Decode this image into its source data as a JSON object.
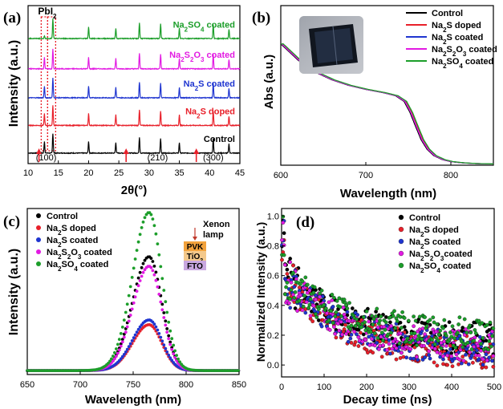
{
  "chart_data": [
    {
      "panel": "(a)",
      "type": "line",
      "title": "",
      "xlabel": "2θ(°)",
      "ylabel": "Intensity (a.u.)",
      "xlim": [
        10,
        45
      ],
      "xticks": [
        10,
        15,
        20,
        25,
        30,
        35,
        40,
        45
      ],
      "ylim": [
        0,
        6
      ],
      "annotations": {
        "pbi2": "PbI",
        "pbi2_sub": "2",
        "p100": "(100)",
        "p210": "(210)",
        "p300": "(300)"
      },
      "peaks": [
        12.7,
        14.1,
        20.0,
        24.5,
        28.4,
        31.9,
        35.0,
        40.6,
        43.2
      ],
      "peak_heights": [
        0.45,
        0.75,
        0.45,
        0.4,
        0.6,
        0.55,
        0.4,
        0.55,
        0.35
      ],
      "pbi2_peak": 12.7,
      "arrows_x": [
        11.8,
        26.2,
        37.8
      ],
      "series": [
        {
          "name": "Control",
          "label_parts": [
            "Control"
          ],
          "offset": 0.4,
          "color": "#000000"
        },
        {
          "name": "Na2S doped",
          "label_parts": [
            "Na",
            "2",
            "S doped"
          ],
          "offset": 1.45,
          "color": "#e8202a"
        },
        {
          "name": "Na2S coated",
          "label_parts": [
            "Na",
            "2",
            "S coated"
          ],
          "offset": 2.5,
          "color": "#1f35d0"
        },
        {
          "name": "Na2S2O3 coated",
          "label_parts": [
            "Na",
            "2",
            "S",
            "2",
            "O",
            "3",
            " coated"
          ],
          "offset": 3.6,
          "color": "#e21ae2"
        },
        {
          "name": "Na2SO4 coated",
          "label_parts": [
            "Na",
            "2",
            "SO",
            "4",
            " coated"
          ],
          "offset": 4.75,
          "color": "#1c9e2a"
        }
      ]
    },
    {
      "panel": "(b)",
      "type": "line",
      "xlabel": "Wavelength (nm)",
      "ylabel": "Abs (a.u.)",
      "xlim": [
        600,
        850
      ],
      "xticks": [
        600,
        700,
        800
      ],
      "ylim": [
        0,
        1
      ],
      "curve_x": [
        600,
        620,
        640,
        660,
        680,
        700,
        720,
        735,
        745,
        752,
        758,
        765,
        772,
        780,
        790,
        800,
        815,
        830,
        850
      ],
      "curve_y": [
        0.76,
        0.66,
        0.585,
        0.535,
        0.5,
        0.475,
        0.455,
        0.435,
        0.4,
        0.33,
        0.25,
        0.16,
        0.1,
        0.06,
        0.035,
        0.022,
        0.014,
        0.01,
        0.008
      ],
      "shifts": [
        0,
        2,
        1,
        1,
        3
      ],
      "series": [
        {
          "name": "Control",
          "label_parts": [
            "Control"
          ],
          "color": "#000000"
        },
        {
          "name": "Na2S doped",
          "label_parts": [
            "Na",
            "2",
            "S doped"
          ],
          "color": "#e8202a"
        },
        {
          "name": "Na2S coated",
          "label_parts": [
            "Na",
            "2",
            "S coated"
          ],
          "color": "#1f35d0"
        },
        {
          "name": "Na2S2O3 coated",
          "label_parts": [
            "Na",
            "2",
            "S",
            "2",
            "O",
            "3",
            " coated"
          ],
          "color": "#e21ae2"
        },
        {
          "name": "Na2SO4 coated",
          "label_parts": [
            "Na",
            "2",
            "SO",
            "4",
            " coated"
          ],
          "color": "#1c9e2a"
        }
      ],
      "legend": "top-right"
    },
    {
      "panel": "(c)",
      "type": "scatter",
      "xlabel": "Wavelength (nm)",
      "ylabel": "Intensity (a.u.)",
      "xlim": [
        650,
        850
      ],
      "xticks": [
        650,
        700,
        750,
        800,
        850
      ],
      "ylim": [
        0,
        1.05
      ],
      "center": 765,
      "inset": {
        "title1": "Xenon",
        "title2": "lamp",
        "layers": [
          "PVK",
          "TiO",
          "FTO"
        ],
        "tio_sub": "2"
      },
      "series": [
        {
          "name": "Control",
          "label_parts": [
            "Control"
          ],
          "peak": 0.72,
          "color": "#000000"
        },
        {
          "name": "Na2S doped",
          "label_parts": [
            "Na",
            "2",
            "S doped"
          ],
          "peak": 0.29,
          "color": "#e8202a"
        },
        {
          "name": "Na2S coated",
          "label_parts": [
            "Na",
            "2",
            "S coated"
          ],
          "peak": 0.32,
          "color": "#1f35d0"
        },
        {
          "name": "Na2S2O3 coated",
          "label_parts": [
            "Na",
            "2",
            "S",
            "2",
            "O",
            "3",
            " coated"
          ],
          "peak": 0.66,
          "color": "#e21ae2"
        },
        {
          "name": "Na2SO4 coated",
          "label_parts": [
            "Na",
            "2",
            "SO",
            "4",
            " coated"
          ],
          "peak": 1.0,
          "color": "#1c9e2a"
        }
      ],
      "legend": "top-left"
    },
    {
      "panel": "(d)",
      "type": "scatter",
      "xlabel": "Decay time (ns)",
      "ylabel": "Normalized Intensity (a.u.)",
      "xlim": [
        0,
        500
      ],
      "xticks": [
        0,
        100,
        200,
        300,
        400,
        500
      ],
      "ylim": [
        -0.08,
        1.05
      ],
      "yticks": [
        0.0,
        0.2,
        0.4,
        0.6,
        0.8,
        1.0
      ],
      "series": [
        {
          "name": "Control",
          "label_parts": [
            "Control"
          ],
          "tail": 0.16,
          "color": "#000000"
        },
        {
          "name": "Na2S doped",
          "label_parts": [
            "Na",
            "2",
            "S doped"
          ],
          "tail": 0.06,
          "color": "#e8202a"
        },
        {
          "name": "Na2S coated",
          "label_parts": [
            "Na",
            "2",
            "S coated"
          ],
          "tail": 0.09,
          "color": "#1f35d0"
        },
        {
          "name": "Na2S2O3coated",
          "label_parts": [
            "Na",
            "2",
            "S",
            "2",
            "O",
            "3",
            "coated"
          ],
          "tail": 0.11,
          "color": "#e21ae2"
        },
        {
          "name": "Na2SO4 coated",
          "label_parts": [
            "Na",
            "2",
            "SO",
            "4",
            " coated"
          ],
          "tail": 0.19,
          "color": "#1c9e2a"
        }
      ],
      "legend": "top-right"
    }
  ]
}
